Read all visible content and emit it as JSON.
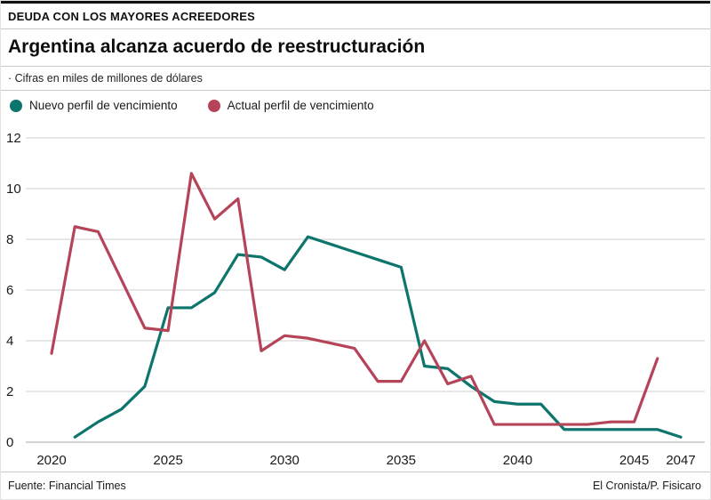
{
  "header": {
    "kicker": "DEUDA CON LOS MAYORES ACREEDORES",
    "title": "Argentina alcanza acuerdo de reestructuración",
    "subtitle": "· Cifras en miles de millones de dólares"
  },
  "footer": {
    "source": "Fuente: Financial Times",
    "credit": "El Cronista/P. Fisicaro"
  },
  "chart_data": {
    "type": "line",
    "title": "Argentina alcanza acuerdo de reestructuración",
    "xlabel": "",
    "ylabel": "",
    "x": [
      2020,
      2021,
      2022,
      2023,
      2024,
      2025,
      2026,
      2027,
      2028,
      2029,
      2030,
      2031,
      2032,
      2033,
      2034,
      2035,
      2036,
      2037,
      2038,
      2039,
      2040,
      2041,
      2042,
      2043,
      2044,
      2045,
      2046,
      2047
    ],
    "xticks": [
      2020,
      2025,
      2030,
      2035,
      2040,
      2045,
      2047
    ],
    "yticks": [
      0,
      2,
      4,
      6,
      8,
      10,
      12
    ],
    "ylim": [
      0,
      12
    ],
    "grid": true,
    "legend_position": "top-left",
    "series": [
      {
        "name": "Nuevo perfil de vencimiento",
        "color": "#0e756c",
        "values": [
          null,
          0.2,
          0.8,
          1.3,
          2.2,
          5.3,
          5.3,
          5.9,
          7.4,
          7.3,
          6.8,
          8.1,
          7.8,
          7.5,
          7.2,
          6.9,
          3.0,
          2.9,
          2.2,
          1.6,
          1.5,
          1.5,
          0.5,
          0.5,
          0.5,
          0.5,
          0.5,
          0.2
        ]
      },
      {
        "name": "Actual perfil de vencimiento",
        "color": "#b64459",
        "values": [
          3.5,
          8.5,
          8.3,
          6.4,
          4.5,
          4.4,
          10.6,
          8.8,
          9.6,
          3.6,
          4.2,
          4.1,
          3.9,
          3.7,
          2.4,
          2.4,
          4.0,
          2.3,
          2.6,
          0.7,
          0.7,
          0.7,
          0.7,
          0.7,
          0.8,
          0.8,
          3.3,
          null
        ]
      }
    ]
  }
}
